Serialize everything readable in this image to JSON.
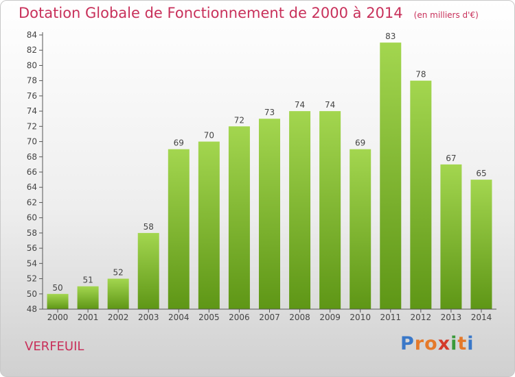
{
  "title": "Dotation Globale de Fonctionnement de 2000 à 2014",
  "unit": "(en milliers d'€)",
  "commune": "VERFEUIL",
  "logo": {
    "text": "Proxiti",
    "colors": [
      "#3a78c8",
      "#e5792a",
      "#e5792a",
      "#d43a2a",
      "#3a9a3a",
      "#e5792a",
      "#3a78c8"
    ]
  },
  "colors": {
    "bar_top": "#a3d64f",
    "bar_bottom": "#5e9616",
    "title": "#c8305a",
    "axis": "#555555"
  },
  "chart_data": {
    "type": "bar",
    "categories": [
      "2000",
      "2001",
      "2002",
      "2003",
      "2004",
      "2005",
      "2006",
      "2007",
      "2008",
      "2009",
      "2010",
      "2011",
      "2012",
      "2013",
      "2014"
    ],
    "values": [
      50,
      51,
      52,
      58,
      69,
      70,
      72,
      73,
      74,
      74,
      69,
      83,
      78,
      67,
      65
    ],
    "title": "Dotation Globale de Fonctionnement de 2000 à 2014",
    "xlabel": "",
    "ylabel": "",
    "ylim": [
      48,
      84
    ],
    "yticks": [
      48,
      50,
      52,
      54,
      56,
      58,
      60,
      62,
      64,
      66,
      68,
      70,
      72,
      74,
      76,
      78,
      80,
      82,
      84
    ],
    "grid": false
  }
}
